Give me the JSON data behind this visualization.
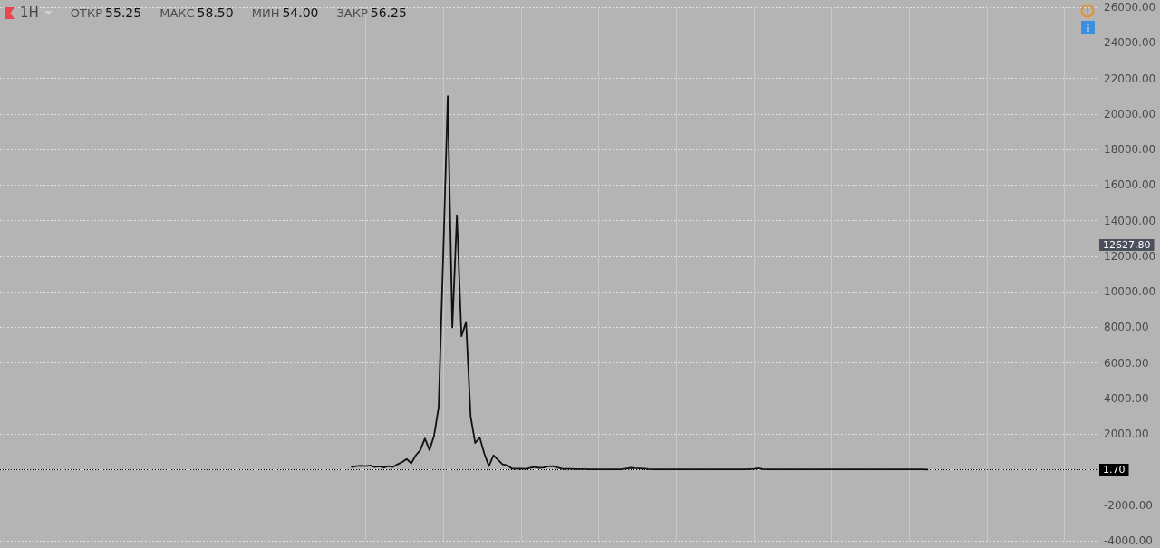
{
  "chart_data": {
    "type": "line",
    "title": "1H",
    "annotations": [
      "ОТКР 55.25",
      "МАКС 58.50",
      "МИН 54.00",
      "ЗАКР 56.25"
    ],
    "categories": [
      null,
      null,
      null,
      null,
      null,
      null,
      null,
      null,
      null,
      null,
      null,
      null,
      null,
      null,
      null,
      null,
      null,
      null,
      null,
      null,
      null,
      null,
      null,
      null,
      null,
      null,
      null,
      null,
      null,
      null,
      null,
      null,
      null,
      null,
      null,
      null,
      null,
      null,
      null,
      null,
      null,
      null,
      null,
      null,
      null,
      null,
      null,
      null,
      null,
      null,
      null,
      null,
      null,
      null,
      null,
      null,
      null,
      null,
      null,
      null,
      null,
      null,
      null,
      null,
      null,
      null,
      null,
      null,
      null,
      null,
      null,
      null,
      null,
      null,
      null,
      null,
      null,
      null,
      null,
      null,
      null,
      null,
      null,
      null,
      null,
      null,
      null,
      null,
      null,
      null,
      null,
      null,
      null,
      null,
      null,
      null,
      null,
      null,
      null,
      null,
      null,
      null,
      null,
      null,
      null,
      null,
      null,
      null,
      null,
      null,
      null,
      null,
      null,
      null,
      null,
      null,
      null,
      null,
      null,
      null,
      null,
      null,
      null,
      null,
      null,
      null,
      null,
      null,
      null,
      null,
      null,
      null,
      null,
      null,
      null,
      null,
      null,
      null,
      null,
      null,
      null,
      null,
      null,
      null,
      null,
      null,
      null,
      null,
      null,
      null,
      null,
      null,
      null,
      null,
      null,
      null,
      null,
      null,
      null,
      null,
      null,
      null,
      null,
      null,
      null,
      null,
      null,
      null,
      null,
      null,
      null,
      null,
      null,
      null,
      null,
      null,
      null,
      null,
      null,
      null,
      null,
      null,
      null,
      null,
      null,
      null,
      null,
      null,
      null,
      null,
      null,
      null,
      null,
      null,
      null,
      null,
      null,
      null,
      null,
      null,
      null,
      null,
      null,
      null,
      null,
      null,
      null,
      null,
      null,
      null,
      null,
      null,
      null,
      null,
      null,
      null,
      null,
      null,
      null,
      null,
      null,
      null,
      null,
      null,
      null,
      null,
      null,
      null,
      null,
      null,
      null,
      null,
      null,
      null,
      null,
      null,
      null,
      null,
      null,
      null,
      null
    ],
    "values": [
      null,
      null,
      null,
      null,
      null,
      null,
      null,
      null,
      null,
      null,
      null,
      null,
      null,
      null,
      null,
      null,
      null,
      null,
      null,
      null,
      null,
      null,
      null,
      null,
      null,
      null,
      null,
      null,
      null,
      null,
      null,
      null,
      null,
      null,
      null,
      null,
      null,
      null,
      null,
      null,
      null,
      null,
      null,
      null,
      null,
      null,
      null,
      null,
      null,
      null,
      null,
      null,
      null,
      null,
      null,
      null,
      null,
      null,
      null,
      null,
      null,
      null,
      null,
      null,
      null,
      null,
      null,
      null,
      null,
      null,
      null,
      null,
      null,
      null,
      null,
      null,
      null,
      150,
      200,
      220,
      200,
      230,
      150,
      180,
      120,
      200,
      150,
      300,
      420,
      600,
      350,
      800,
      1100,
      1750,
      1100,
      1900,
      3500,
      12000,
      21000,
      8000,
      14300,
      7500,
      8300,
      3000,
      1500,
      1800,
      900,
      200,
      800,
      550,
      300,
      250,
      60,
      50,
      60,
      40,
      100,
      150,
      100,
      120,
      180,
      200,
      120,
      50,
      40,
      40,
      30,
      30,
      30,
      20,
      20,
      20,
      20,
      20,
      20,
      20,
      20,
      60,
      100,
      80,
      70,
      60,
      30,
      20,
      20,
      20,
      20,
      20,
      20,
      20,
      20,
      20,
      20,
      20,
      20,
      20,
      20,
      20,
      20,
      20,
      20,
      20,
      20,
      20,
      30,
      40,
      80,
      30,
      20,
      20,
      20,
      20,
      20,
      20,
      20,
      20,
      20,
      20,
      20,
      20,
      20,
      20,
      20,
      20,
      20,
      20,
      20,
      20,
      20,
      20,
      20,
      20,
      20,
      20,
      20,
      20,
      20,
      20,
      20,
      20,
      20,
      20,
      20,
      1.7,
      null,
      null,
      null,
      null,
      null,
      null,
      null,
      null,
      null,
      null,
      null,
      null,
      null,
      null,
      null,
      null,
      null,
      null,
      null,
      null,
      null,
      null,
      null,
      null,
      null,
      null,
      null,
      null,
      null,
      null,
      null,
      null,
      null,
      null,
      null,
      null,
      null
    ],
    "color": "#111111",
    "ylim": [
      -4000,
      26000
    ],
    "yticks": [
      {
        "value": -4000,
        "label": "-4000.00"
      },
      {
        "value": -2000,
        "label": "-2000.00"
      },
      {
        "value": 0,
        "label": null
      },
      {
        "value": 2000,
        "label": "2000.00"
      },
      {
        "value": 4000,
        "label": "4000.00"
      },
      {
        "value": 6000,
        "label": "6000.00"
      },
      {
        "value": 8000,
        "label": "8000.00"
      },
      {
        "value": 10000,
        "label": "10000.00"
      },
      {
        "value": 12000,
        "label": "12000.00"
      },
      {
        "value": 14000,
        "label": "14000.00"
      },
      {
        "value": 16000,
        "label": "16000.00"
      },
      {
        "value": 18000,
        "label": "18000.00"
      },
      {
        "value": 20000,
        "label": "20000.00"
      },
      {
        "value": 22000,
        "label": "22000.00"
      },
      {
        "value": 24000,
        "label": "24000.00"
      },
      {
        "value": 26000,
        "label": "26000.00"
      }
    ],
    "ref_lines": [
      {
        "axis": "y",
        "value": 12627.8,
        "label": "12627.80",
        "color": "#4b505c",
        "line_style": "dashed"
      },
      {
        "axis": "y",
        "value": 1.7,
        "label": "1.70",
        "color": "#000000",
        "line_style": "dotted"
      }
    ],
    "grid": true,
    "tick_labels": "y"
  }
}
